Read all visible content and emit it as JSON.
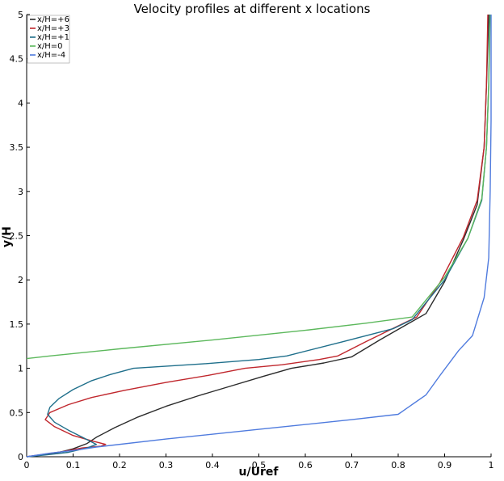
{
  "chart_data": {
    "type": "line",
    "title": "Velocity profiles at different x locations",
    "xlabel": "u/Uref",
    "ylabel": "y/H",
    "xlim": [
      0,
      1
    ],
    "ylim": [
      0,
      5
    ],
    "xticks": [
      "0",
      "0.1",
      "0.2",
      "0.3",
      "0.4",
      "0.5",
      "0.6",
      "0.7",
      "0.8",
      "0.9",
      "1"
    ],
    "yticks": [
      "0",
      "0.5",
      "1",
      "1.5",
      "2",
      "2.5",
      "3",
      "3.5",
      "4",
      "4.5",
      "5"
    ],
    "grid": false,
    "legend_position": "top-left",
    "series": [
      {
        "name": "x/H=+6",
        "color": "#2b2b2b",
        "points": [
          [
            0,
            0
          ],
          [
            0.03,
            0.02
          ],
          [
            0.07,
            0.05
          ],
          [
            0.1,
            0.09
          ],
          [
            0.13,
            0.15
          ],
          [
            0.15,
            0.22
          ],
          [
            0.19,
            0.33
          ],
          [
            0.24,
            0.45
          ],
          [
            0.3,
            0.57
          ],
          [
            0.37,
            0.69
          ],
          [
            0.44,
            0.8
          ],
          [
            0.51,
            0.91
          ],
          [
            0.57,
            1.0
          ],
          [
            0.64,
            1.06
          ],
          [
            0.7,
            1.13
          ],
          [
            0.76,
            1.32
          ],
          [
            0.82,
            1.5
          ],
          [
            0.86,
            1.62
          ],
          [
            0.9,
            1.98
          ],
          [
            0.94,
            2.45
          ],
          [
            0.97,
            2.85
          ],
          [
            0.985,
            3.5
          ],
          [
            0.99,
            4.2
          ],
          [
            0.995,
            5.0
          ]
        ]
      },
      {
        "name": "x/H=+3",
        "color": "#c0272d",
        "points": [
          [
            0,
            0
          ],
          [
            0.04,
            0.03
          ],
          [
            0.08,
            0.06
          ],
          [
            0.12,
            0.1
          ],
          [
            0.16,
            0.12
          ],
          [
            0.17,
            0.14
          ],
          [
            0.14,
            0.18
          ],
          [
            0.1,
            0.24
          ],
          [
            0.06,
            0.34
          ],
          [
            0.04,
            0.42
          ],
          [
            0.05,
            0.5
          ],
          [
            0.09,
            0.59
          ],
          [
            0.14,
            0.67
          ],
          [
            0.21,
            0.75
          ],
          [
            0.3,
            0.84
          ],
          [
            0.39,
            0.92
          ],
          [
            0.47,
            1.0
          ],
          [
            0.55,
            1.04
          ],
          [
            0.63,
            1.1
          ],
          [
            0.67,
            1.14
          ],
          [
            0.73,
            1.3
          ],
          [
            0.8,
            1.48
          ],
          [
            0.84,
            1.58
          ],
          [
            0.89,
            1.97
          ],
          [
            0.94,
            2.48
          ],
          [
            0.97,
            2.9
          ],
          [
            0.985,
            3.5
          ],
          [
            0.99,
            4.2
          ],
          [
            0.993,
            5.0
          ]
        ]
      },
      {
        "name": "x/H=+1",
        "color": "#1f6f8b",
        "points": [
          [
            0,
            0
          ],
          [
            0.04,
            0.02
          ],
          [
            0.09,
            0.05
          ],
          [
            0.13,
            0.1
          ],
          [
            0.15,
            0.14
          ],
          [
            0.12,
            0.22
          ],
          [
            0.09,
            0.3
          ],
          [
            0.06,
            0.39
          ],
          [
            0.045,
            0.48
          ],
          [
            0.05,
            0.56
          ],
          [
            0.07,
            0.66
          ],
          [
            0.1,
            0.76
          ],
          [
            0.14,
            0.86
          ],
          [
            0.18,
            0.93
          ],
          [
            0.23,
            1.0
          ],
          [
            0.38,
            1.05
          ],
          [
            0.5,
            1.1
          ],
          [
            0.56,
            1.14
          ],
          [
            0.68,
            1.3
          ],
          [
            0.79,
            1.45
          ],
          [
            0.83,
            1.55
          ],
          [
            0.9,
            2.0
          ],
          [
            0.95,
            2.47
          ],
          [
            0.98,
            2.9
          ],
          [
            0.99,
            3.5
          ],
          [
            0.995,
            4.2
          ],
          [
            0.997,
            5.0
          ]
        ]
      },
      {
        "name": "x/H=0",
        "color": "#5cb85c",
        "points": [
          [
            0,
            1.11
          ],
          [
            0.05,
            1.14
          ],
          [
            0.2,
            1.22
          ],
          [
            0.4,
            1.32
          ],
          [
            0.6,
            1.43
          ],
          [
            0.73,
            1.51
          ],
          [
            0.83,
            1.58
          ],
          [
            0.9,
            2.03
          ],
          [
            0.95,
            2.47
          ],
          [
            0.98,
            2.92
          ],
          [
            0.99,
            3.5
          ],
          [
            0.995,
            4.2
          ],
          [
            0.998,
            5.0
          ]
        ]
      },
      {
        "name": "x/H=-4",
        "color": "#4f7bde",
        "points": [
          [
            0,
            0
          ],
          [
            0.05,
            0.04
          ],
          [
            0.1,
            0.07
          ],
          [
            0.15,
            0.11
          ],
          [
            0.3,
            0.2
          ],
          [
            0.5,
            0.31
          ],
          [
            0.7,
            0.42
          ],
          [
            0.8,
            0.48
          ],
          [
            0.86,
            0.7
          ],
          [
            0.89,
            0.92
          ],
          [
            0.93,
            1.2
          ],
          [
            0.96,
            1.37
          ],
          [
            0.985,
            1.8
          ],
          [
            0.995,
            2.25
          ],
          [
            0.998,
            3.0
          ],
          [
            1.0,
            3.8
          ],
          [
            1.0,
            5.0
          ]
        ]
      }
    ]
  }
}
